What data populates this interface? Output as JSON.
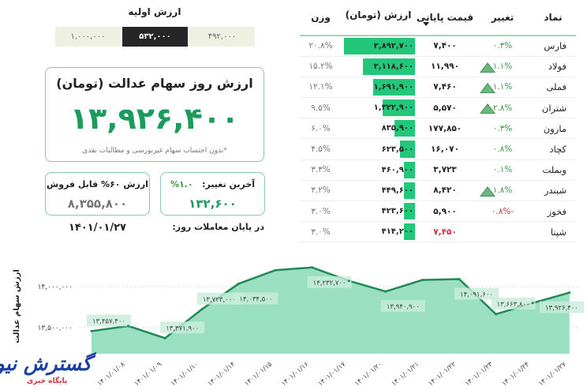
{
  "initial_value": {
    "title": "ارزش اولیه",
    "options": [
      "۱,۰۰۰,۰۰۰",
      "۵۳۲,۰۰۰",
      "۴۹۲,۰۰۰"
    ],
    "selected": "۵۳۲,۰۰۰"
  },
  "main_card": {
    "title": "ارزش روز سهام عدالت (تومان)",
    "value": "۱۳,۹۲۶,۴۰۰",
    "note": "*بدون احتساب سهام غیربورسی و مطالبات نقدی"
  },
  "sellable_card": {
    "title": "ارزش ۶۰% قابل فروش",
    "value": "۸,۳۵۵,۸۰۰"
  },
  "change_card": {
    "label": "آخرین تغییر:",
    "percent": "۱.۰%",
    "value": "۱۳۲,۶۰۰"
  },
  "date": {
    "label": "در پایان معاملات روز:",
    "value": "۱۴۰۱/۰۱/۲۷"
  },
  "table": {
    "headers": {
      "symbol": "نماد",
      "change": "تغییر",
      "price": "قیمت پایانی",
      "value": "ارزش (تومان)",
      "weight": "وزن"
    },
    "sorted_by": "value",
    "rows": [
      {
        "symbol": "فارس",
        "change": "۰.۳%",
        "up": false,
        "negative": false,
        "price": "۷,۴۰۰",
        "value": "۲,۸۹۲,۷۰۰",
        "value_num": 2892700,
        "weight": "۲۰.۸%"
      },
      {
        "symbol": "فولاد",
        "change": "۱.۱%",
        "up": true,
        "negative": false,
        "price": "۱۱,۹۹۰",
        "value": "۲,۱۱۸,۶۰۰",
        "value_num": 2118600,
        "weight": "۱۵.۲%"
      },
      {
        "symbol": "فملی",
        "change": "۱.۱%",
        "up": true,
        "negative": false,
        "price": "۷,۴۶۰",
        "value": "۱,۶۹۱,۹۰۰",
        "value_num": 1691900,
        "weight": "۱۲.۱%"
      },
      {
        "symbol": "شتران",
        "change": "۲.۸%",
        "up": true,
        "negative": false,
        "price": "۵,۵۷۰",
        "value": "۱,۳۲۲,۹۰۰",
        "value_num": 1322900,
        "weight": "۹.۵%"
      },
      {
        "symbol": "مارون",
        "change": "۰.۳%",
        "up": false,
        "negative": false,
        "price": "۱۷۷,۸۵۰",
        "value": "۸۳۵,۹۰۰",
        "value_num": 835900,
        "weight": "۶.۰%"
      },
      {
        "symbol": "کچاد",
        "change": "۰.۸%",
        "up": false,
        "negative": false,
        "price": "۱۶,۰۷۰",
        "value": "۶۲۳,۵۰۰",
        "value_num": 623500,
        "weight": "۴.۵%"
      },
      {
        "symbol": "وبملت",
        "change": "۰.۱%",
        "up": false,
        "negative": false,
        "price": "۳,۷۲۳",
        "value": "۴۶۰,۹۰۰",
        "value_num": 460900,
        "weight": "۳.۳%"
      },
      {
        "symbol": "شبندر",
        "change": "۱.۸%",
        "up": true,
        "negative": false,
        "price": "۸,۴۲۰",
        "value": "۴۴۹,۶۰۰",
        "value_num": 449600,
        "weight": "۳.۲%"
      },
      {
        "symbol": "فخوز",
        "change": "-۰.۸%",
        "up": false,
        "negative": true,
        "price": "۵,۹۰۰",
        "value": "۴۲۳,۶۰۰",
        "value_num": 423600,
        "weight": "۳.۰%"
      },
      {
        "symbol": "شپنا",
        "change": "",
        "up": false,
        "negative": false,
        "price_negative": true,
        "price": "۷,۴۵۰",
        "value": "۴۱۴,۲۰۰",
        "value_num": 414200,
        "weight": "۳.۰%"
      }
    ]
  },
  "colors": {
    "accent": "#1c9c5c",
    "bar": "#22c77a",
    "area": "#8fdcbb",
    "line": "#1f8a55",
    "negative": "#d0303a"
  },
  "chart_data": {
    "type": "area",
    "ylabel": "ارزش سهام عدالت",
    "y_ticks": [
      {
        "value": 13500000,
        "label": "۱۳,۵۰۰,۰۰۰"
      },
      {
        "value": 14000000,
        "label": "۱۴,۰۰۰,۰۰۰"
      }
    ],
    "ylim": [
      13200000,
      14320000
    ],
    "grid": true,
    "points": [
      {
        "date": "",
        "value": 13457400,
        "label": "۱۳,۴۵۷,۴۰۰"
      },
      {
        "date": "۱۴۰۱/۰۱/۰۸",
        "value": 13520000,
        "label": ""
      },
      {
        "date": "۱۴۰۱/۰۱/۰۹",
        "value": 13371900,
        "label": "۱۳,۳۷۱,۹۰۰"
      },
      {
        "date": "۱۴۰۱/۰۱/۱۰",
        "value": 13723000,
        "label": "۱۳,۷۲۳,۰۰۰"
      },
      {
        "date": "۱۴۰۱/۰۱/۱۴",
        "value": 14034500,
        "label": "۱۴,۰۳۴,۵۰۰"
      },
      {
        "date": "۱۴۰۱/۰۱/۱۵",
        "value": 14200000,
        "label": ""
      },
      {
        "date": "۱۴۰۱/۰۱/۱۶",
        "value": 14232700,
        "label": "۱۴,۲۳۲,۷۰۰"
      },
      {
        "date": "۱۴۰۱/۰۱/۱۷",
        "value": 14070000,
        "label": ""
      },
      {
        "date": "۱۴۰۱/۰۱/۲۰",
        "value": 13940900,
        "label": "۱۳,۹۴۰,۹۰۰"
      },
      {
        "date": "۱۴۰۱/۰۱/۲۱",
        "value": 14080000,
        "label": ""
      },
      {
        "date": "۱۴۰۱/۰۱/۲۲",
        "value": 14091600,
        "label": "۱۴,۰۹۱,۶۰۰"
      },
      {
        "date": "۱۴۰۱/۰۱/۲۳",
        "value": 13663800,
        "label": "۱۳,۶۶۳,۸۰۰"
      },
      {
        "date": "۱۴۰۱/۰۱/۲۴",
        "value": 13800000,
        "label": ""
      },
      {
        "date": "۱۴۰۱/۰۱/۲۷",
        "value": 13926400,
        "label": "۱۳,۹۲۶,۴۰۰"
      }
    ]
  },
  "logo": {
    "name": "گسترش نیوز",
    "tagline": "پایگاه خبری"
  }
}
